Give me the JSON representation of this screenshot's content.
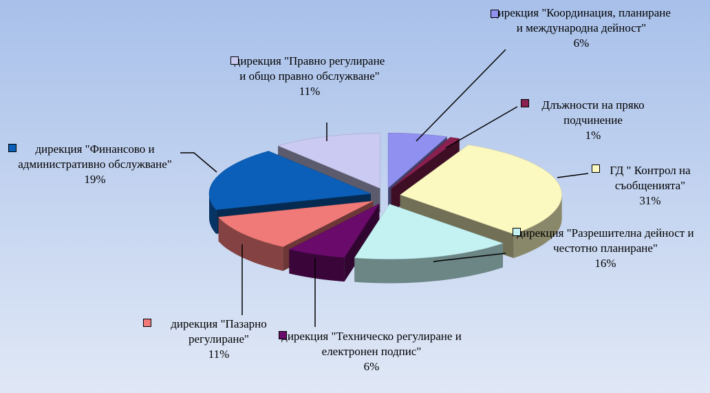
{
  "chart_data": {
    "type": "pie",
    "categories": [
      "дирекция \"Координация, планиране и международна дейност\"",
      "Длъжности на пряко подчинение",
      "ГД \" Контрол на съобщенията\"",
      "дирекция \"Разрешителна дейност и честотно планиране\"",
      "дирекция \"Техническо регулиране и електронен подпис\"",
      "дирекция \"Пазарно регулиране\"",
      "дирекция \"Финансово и административно обслужване\"",
      "дирекция \"Правно регулиране и общо правно обслужване\""
    ],
    "values": [
      6,
      1,
      31,
      16,
      6,
      11,
      19,
      11
    ],
    "value_labels": [
      "6%",
      "1%",
      "31%",
      "16%",
      "6%",
      "11%",
      "19%",
      "11%"
    ],
    "colors": [
      "#9090f0",
      "#8a2050",
      "#fbf8c0",
      "#c4f2f2",
      "#6a0a6a",
      "#f07a78",
      "#0b5fb8",
      "#cacaf2"
    ]
  }
}
